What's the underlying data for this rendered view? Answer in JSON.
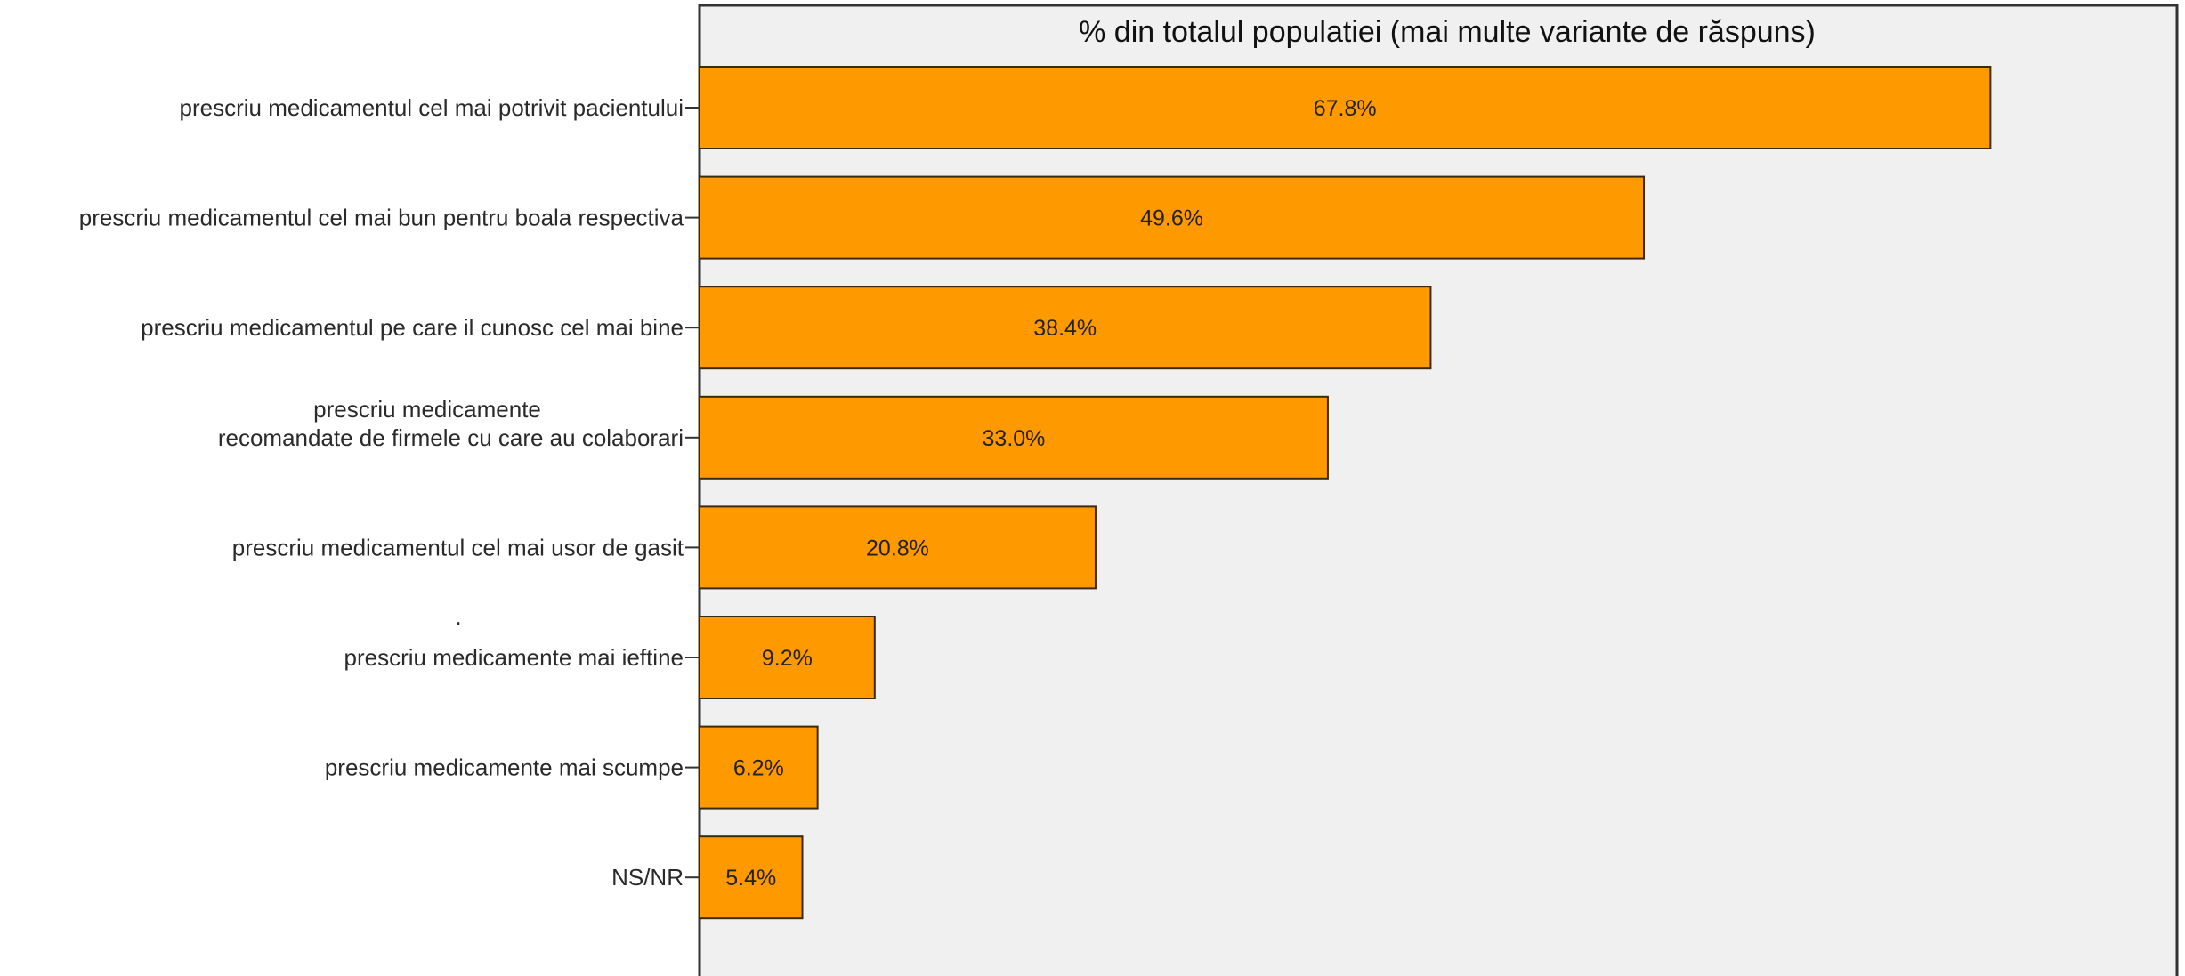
{
  "chart_data": {
    "type": "bar",
    "orientation": "horizontal",
    "title": "% din totalul populatiei (mai multe variante de răspuns)",
    "categories": [
      [
        "prescriu medicamentul cel mai potrivit pacientului"
      ],
      [
        "prescriu medicamentul cel mai bun pentru boala respectiva"
      ],
      [
        "prescriu medicamentul pe care il cunosc cel mai bine"
      ],
      [
        "prescriu medicamente",
        "recomandate de firmele cu care au colaborari"
      ],
      [
        "prescriu medicamentul cel mai usor de gasit"
      ],
      [
        "prescriu medicamente mai ieftine"
      ],
      [
        "prescriu medicamente mai scumpe"
      ],
      [
        "NS/NR"
      ]
    ],
    "values": [
      67.8,
      49.6,
      38.4,
      33.0,
      20.8,
      9.2,
      6.2,
      5.4
    ],
    "value_labels": [
      "67.8%",
      "49.6%",
      "38.4%",
      "33.0%",
      "20.8%",
      "9.2%",
      "6.2%",
      "5.4%"
    ],
    "xlim": [
      0,
      77.6
    ],
    "stray_mark": ".",
    "bar_color": "#FF9900",
    "plot_background": "#F0F0F0",
    "grid": false,
    "legend": "none"
  }
}
